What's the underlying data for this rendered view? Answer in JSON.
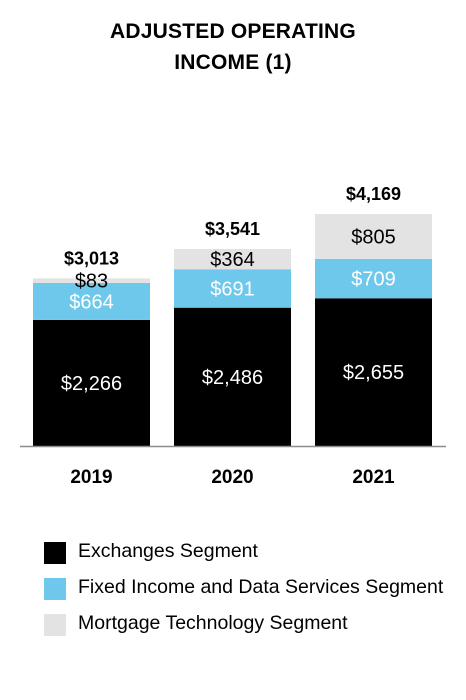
{
  "title_lines": [
    "ADJUSTED OPERATING",
    "INCOME (1)"
  ],
  "colors": {
    "exchanges": "#000000",
    "fixed_income": "#6ec8ec",
    "mortgage": "#e3e3e3",
    "axis": "#8c8c8c"
  },
  "chart_data": {
    "type": "bar",
    "stacked": true,
    "title": "ADJUSTED OPERATING INCOME (1)",
    "categories": [
      "2019",
      "2020",
      "2021"
    ],
    "series": [
      {
        "name": "Exchanges Segment",
        "values": [
          2266,
          2486,
          2655
        ],
        "labels": [
          "$2,266",
          "$2,486",
          "$2,655"
        ],
        "label_color": "#ffffff"
      },
      {
        "name": "Fixed Income and Data Services Segment",
        "values": [
          664,
          691,
          709
        ],
        "labels": [
          "$664",
          "$691",
          "$709"
        ],
        "label_color": "#ffffff"
      },
      {
        "name": "Mortgage Technology Segment",
        "values": [
          83,
          364,
          805
        ],
        "labels": [
          "$83",
          "$364",
          "$805"
        ],
        "label_color": "#000000"
      }
    ],
    "totals": [
      3013,
      3541,
      4169
    ],
    "total_labels": [
      "$3,013",
      "$3,541",
      "$4,169"
    ],
    "ylim": [
      0,
      4170
    ],
    "grid": false,
    "legend_position": "bottom"
  },
  "legend": [
    {
      "label": "Exchanges Segment",
      "color": "#000000"
    },
    {
      "label": "Fixed Income and Data Services Segment",
      "color": "#6ec8ec"
    },
    {
      "label": "Mortgage Technology Segment",
      "color": "#e3e3e3"
    }
  ]
}
